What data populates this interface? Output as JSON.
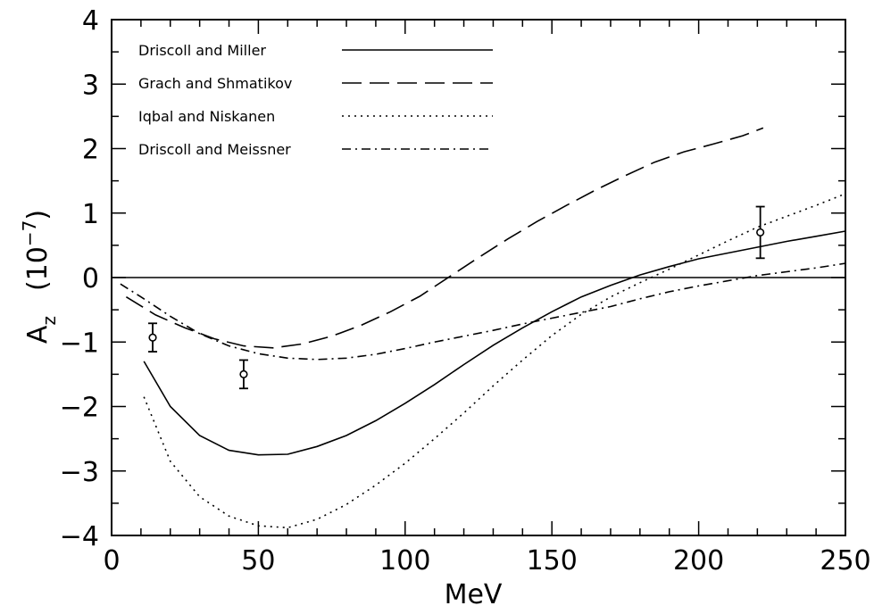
{
  "chart_data": {
    "type": "line",
    "xlabel": "MeV",
    "ylabel": {
      "base": "A",
      "subscript": "z",
      "unit_prefix": "(10",
      "unit_exponent": "−7",
      "unit_suffix": ")"
    },
    "xlim": [
      0,
      250
    ],
    "ylim": [
      -4,
      4
    ],
    "x_ticks": [
      0,
      50,
      100,
      150,
      200,
      250
    ],
    "x_tick_labels": [
      "0",
      "50",
      "100",
      "150",
      "200",
      "250"
    ],
    "y_ticks": [
      -4,
      -3,
      -2,
      -1,
      0,
      1,
      2,
      3,
      4
    ],
    "y_tick_labels": [
      "−4",
      "−3",
      "−2",
      "−1",
      "0",
      "1",
      "2",
      "3",
      "4"
    ],
    "legend_position": "top-left",
    "zero_line": true,
    "series": [
      {
        "name": "Driscoll and Miller",
        "style": "solid",
        "points": [
          [
            11,
            -1.3
          ],
          [
            20,
            -2.0
          ],
          [
            30,
            -2.45
          ],
          [
            40,
            -2.68
          ],
          [
            50,
            -2.75
          ],
          [
            60,
            -2.74
          ],
          [
            70,
            -2.62
          ],
          [
            80,
            -2.45
          ],
          [
            90,
            -2.22
          ],
          [
            100,
            -1.95
          ],
          [
            110,
            -1.66
          ],
          [
            120,
            -1.35
          ],
          [
            130,
            -1.05
          ],
          [
            140,
            -0.78
          ],
          [
            150,
            -0.53
          ],
          [
            160,
            -0.3
          ],
          [
            170,
            -0.12
          ],
          [
            180,
            0.04
          ],
          [
            190,
            0.17
          ],
          [
            200,
            0.29
          ],
          [
            210,
            0.38
          ],
          [
            220,
            0.47
          ],
          [
            230,
            0.56
          ],
          [
            240,
            0.64
          ],
          [
            250,
            0.72
          ]
        ]
      },
      {
        "name": "Grach and Shmatikov",
        "style": "dashed",
        "points": [
          [
            5,
            -0.3
          ],
          [
            15,
            -0.58
          ],
          [
            25,
            -0.78
          ],
          [
            35,
            -0.95
          ],
          [
            45,
            -1.06
          ],
          [
            55,
            -1.09
          ],
          [
            65,
            -1.03
          ],
          [
            75,
            -0.91
          ],
          [
            85,
            -0.74
          ],
          [
            95,
            -0.53
          ],
          [
            105,
            -0.29
          ],
          [
            115,
            0.01
          ],
          [
            125,
            0.31
          ],
          [
            135,
            0.6
          ],
          [
            145,
            0.87
          ],
          [
            155,
            1.12
          ],
          [
            165,
            1.36
          ],
          [
            175,
            1.58
          ],
          [
            185,
            1.79
          ],
          [
            195,
            1.95
          ],
          [
            205,
            2.07
          ],
          [
            215,
            2.2
          ],
          [
            222,
            2.32
          ]
        ]
      },
      {
        "name": "Iqbal and Niskanen",
        "style": "dotted",
        "points": [
          [
            11,
            -1.85
          ],
          [
            20,
            -2.85
          ],
          [
            30,
            -3.4
          ],
          [
            40,
            -3.7
          ],
          [
            50,
            -3.85
          ],
          [
            60,
            -3.88
          ],
          [
            70,
            -3.75
          ],
          [
            80,
            -3.52
          ],
          [
            90,
            -3.22
          ],
          [
            100,
            -2.88
          ],
          [
            110,
            -2.5
          ],
          [
            120,
            -2.1
          ],
          [
            130,
            -1.68
          ],
          [
            140,
            -1.28
          ],
          [
            150,
            -0.9
          ],
          [
            160,
            -0.57
          ],
          [
            170,
            -0.3
          ],
          [
            180,
            -0.08
          ],
          [
            190,
            0.13
          ],
          [
            200,
            0.35
          ],
          [
            210,
            0.57
          ],
          [
            220,
            0.78
          ],
          [
            230,
            0.95
          ],
          [
            240,
            1.12
          ],
          [
            250,
            1.3
          ]
        ]
      },
      {
        "name": "Driscoll and Meissner",
        "style": "dashdot",
        "points": [
          [
            3,
            -0.1
          ],
          [
            10,
            -0.3
          ],
          [
            20,
            -0.6
          ],
          [
            30,
            -0.87
          ],
          [
            40,
            -1.06
          ],
          [
            50,
            -1.18
          ],
          [
            60,
            -1.25
          ],
          [
            70,
            -1.27
          ],
          [
            80,
            -1.25
          ],
          [
            90,
            -1.19
          ],
          [
            100,
            -1.1
          ],
          [
            110,
            -1.0
          ],
          [
            120,
            -0.91
          ],
          [
            130,
            -0.82
          ],
          [
            140,
            -0.72
          ],
          [
            150,
            -0.63
          ],
          [
            160,
            -0.54
          ],
          [
            170,
            -0.45
          ],
          [
            180,
            -0.33
          ],
          [
            190,
            -0.22
          ],
          [
            200,
            -0.13
          ],
          [
            210,
            -0.05
          ],
          [
            220,
            0.03
          ],
          [
            230,
            0.09
          ],
          [
            240,
            0.15
          ],
          [
            250,
            0.22
          ]
        ]
      }
    ],
    "error_points": [
      {
        "x": 14,
        "y": -0.93,
        "err_low": 0.22,
        "err_high": 0.22
      },
      {
        "x": 45,
        "y": -1.5,
        "err_low": 0.22,
        "err_high": 0.22
      },
      {
        "x": 221,
        "y": 0.7,
        "err_low": 0.4,
        "err_high": 0.4
      }
    ]
  }
}
